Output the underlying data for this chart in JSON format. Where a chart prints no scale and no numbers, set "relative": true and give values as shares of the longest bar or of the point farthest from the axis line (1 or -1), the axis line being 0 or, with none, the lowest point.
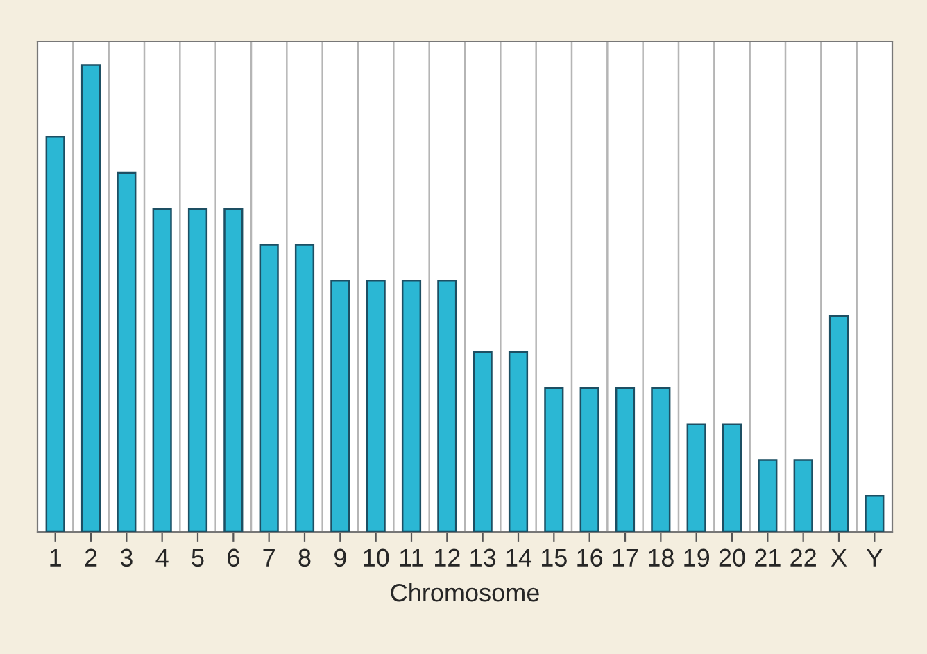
{
  "chart_data": {
    "type": "bar",
    "xlabel": "Chromosome",
    "relative": true,
    "grid": "x",
    "categories": [
      "1",
      "2",
      "3",
      "4",
      "5",
      "6",
      "7",
      "8",
      "9",
      "10",
      "11",
      "12",
      "13",
      "14",
      "15",
      "16",
      "17",
      "18",
      "19",
      "20",
      "21",
      "22",
      "X",
      "Y"
    ],
    "series": [
      {
        "color": "#2bb7d4",
        "values": [
          0.846,
          1,
          0.769,
          0.692,
          0.692,
          0.692,
          0.615,
          0.615,
          0.538,
          0.538,
          0.538,
          0.538,
          0.385,
          0.385,
          0.308,
          0.308,
          0.308,
          0.308,
          0.231,
          0.231,
          0.154,
          0.154,
          0.462,
          0.077
        ]
      }
    ]
  }
}
